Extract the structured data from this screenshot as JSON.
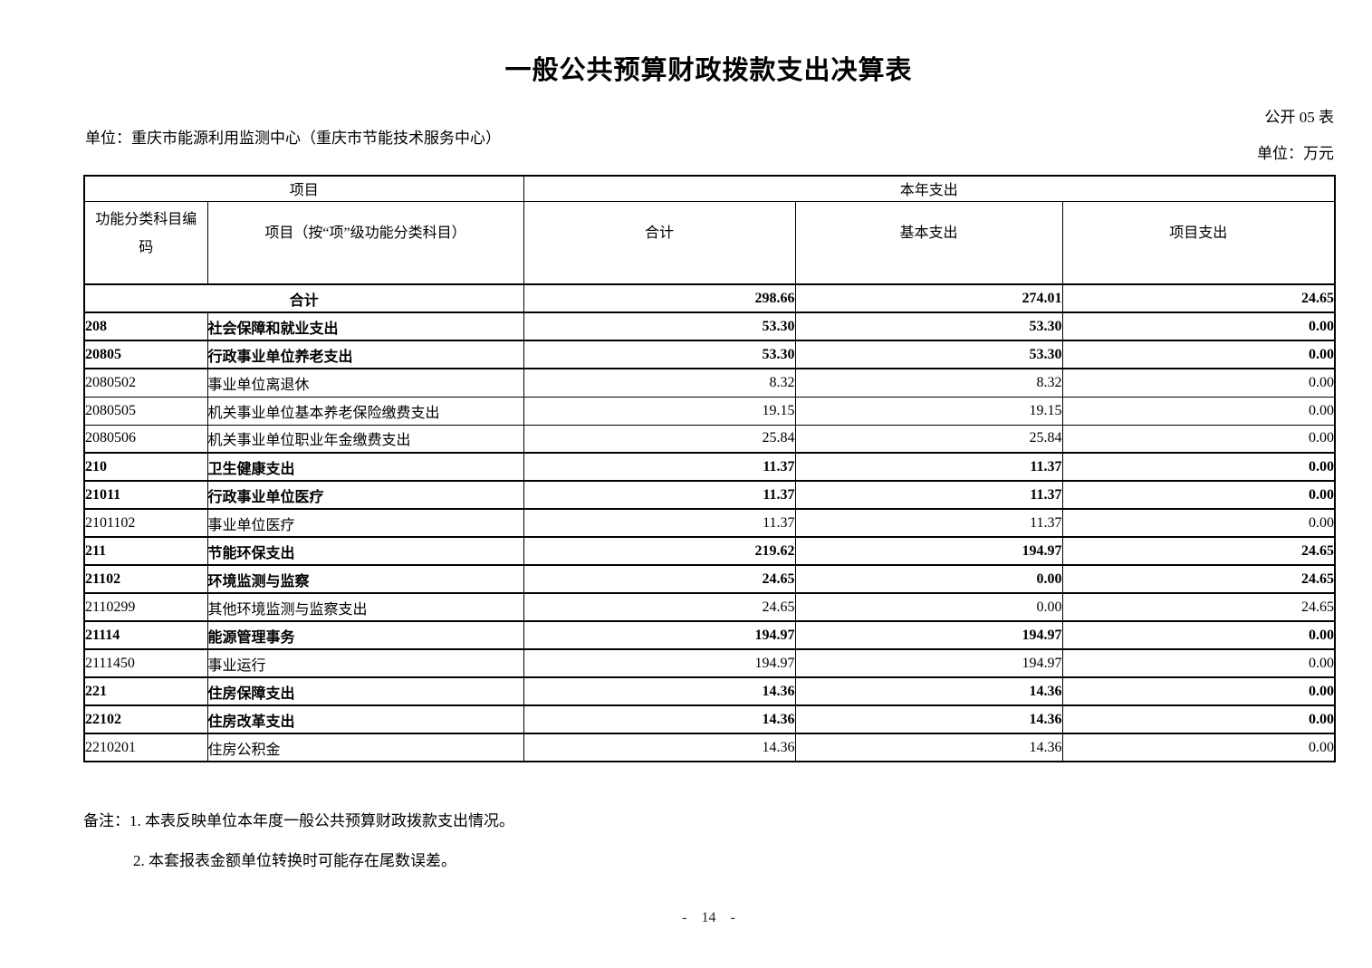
{
  "page": {
    "title": "一般公共预算财政拨款支出决算表",
    "unit_line": "单位：重庆市能源利用监测中心（重庆市节能技术服务中心）",
    "sheet_code": "公开 05 表",
    "currency_unit": "单位：万元",
    "page_number": "- 14 -"
  },
  "table": {
    "header": {
      "group_item": "项目",
      "group_year": "本年支出",
      "col_code": "功能分类科目编码",
      "col_item": "项目（按“项”级功能分类科目）",
      "col_total": "合计",
      "col_basic": "基本支出",
      "col_project": "项目支出"
    },
    "rows": [
      {
        "code": "",
        "name": "合计",
        "total": "298.66",
        "basic": "274.01",
        "project": "24.65",
        "bold": true,
        "merged": true
      },
      {
        "code": "208",
        "name": "社会保障和就业支出",
        "total": "53.30",
        "basic": "53.30",
        "project": "0.00",
        "bold": true
      },
      {
        "code": "20805",
        "name": "行政事业单位养老支出",
        "total": "53.30",
        "basic": "53.30",
        "project": "0.00",
        "bold": true
      },
      {
        "code": "2080502",
        "name": "事业单位离退休",
        "total": "8.32",
        "basic": "8.32",
        "project": "0.00",
        "bold": false
      },
      {
        "code": "2080505",
        "name": "机关事业单位基本养老保险缴费支出",
        "total": "19.15",
        "basic": "19.15",
        "project": "0.00",
        "bold": false
      },
      {
        "code": "2080506",
        "name": "机关事业单位职业年金缴费支出",
        "total": "25.84",
        "basic": "25.84",
        "project": "0.00",
        "bold": false
      },
      {
        "code": "210",
        "name": "卫生健康支出",
        "total": "11.37",
        "basic": "11.37",
        "project": "0.00",
        "bold": true
      },
      {
        "code": "21011",
        "name": "行政事业单位医疗",
        "total": "11.37",
        "basic": "11.37",
        "project": "0.00",
        "bold": true
      },
      {
        "code": "2101102",
        "name": "事业单位医疗",
        "total": "11.37",
        "basic": "11.37",
        "project": "0.00",
        "bold": false
      },
      {
        "code": "211",
        "name": "节能环保支出",
        "total": "219.62",
        "basic": "194.97",
        "project": "24.65",
        "bold": true
      },
      {
        "code": "21102",
        "name": "环境监测与监察",
        "total": "24.65",
        "basic": "0.00",
        "project": "24.65",
        "bold": true
      },
      {
        "code": "2110299",
        "name": "其他环境监测与监察支出",
        "total": "24.65",
        "basic": "0.00",
        "project": "24.65",
        "bold": false
      },
      {
        "code": "21114",
        "name": "能源管理事务",
        "total": "194.97",
        "basic": "194.97",
        "project": "0.00",
        "bold": true
      },
      {
        "code": "2111450",
        "name": "事业运行",
        "total": "194.97",
        "basic": "194.97",
        "project": "0.00",
        "bold": false
      },
      {
        "code": "221",
        "name": "住房保障支出",
        "total": "14.36",
        "basic": "14.36",
        "project": "0.00",
        "bold": true
      },
      {
        "code": "22102",
        "name": "住房改革支出",
        "total": "14.36",
        "basic": "14.36",
        "project": "0.00",
        "bold": true
      },
      {
        "code": "2210201",
        "name": "住房公积金",
        "total": "14.36",
        "basic": "14.36",
        "project": "0.00",
        "bold": false
      }
    ]
  },
  "notes": {
    "label": "备注：",
    "items": [
      "1. 本表反映单位本年度一般公共预算财政拨款支出情况。",
      "2. 本套报表金额单位转换时可能存在尾数误差。"
    ]
  }
}
